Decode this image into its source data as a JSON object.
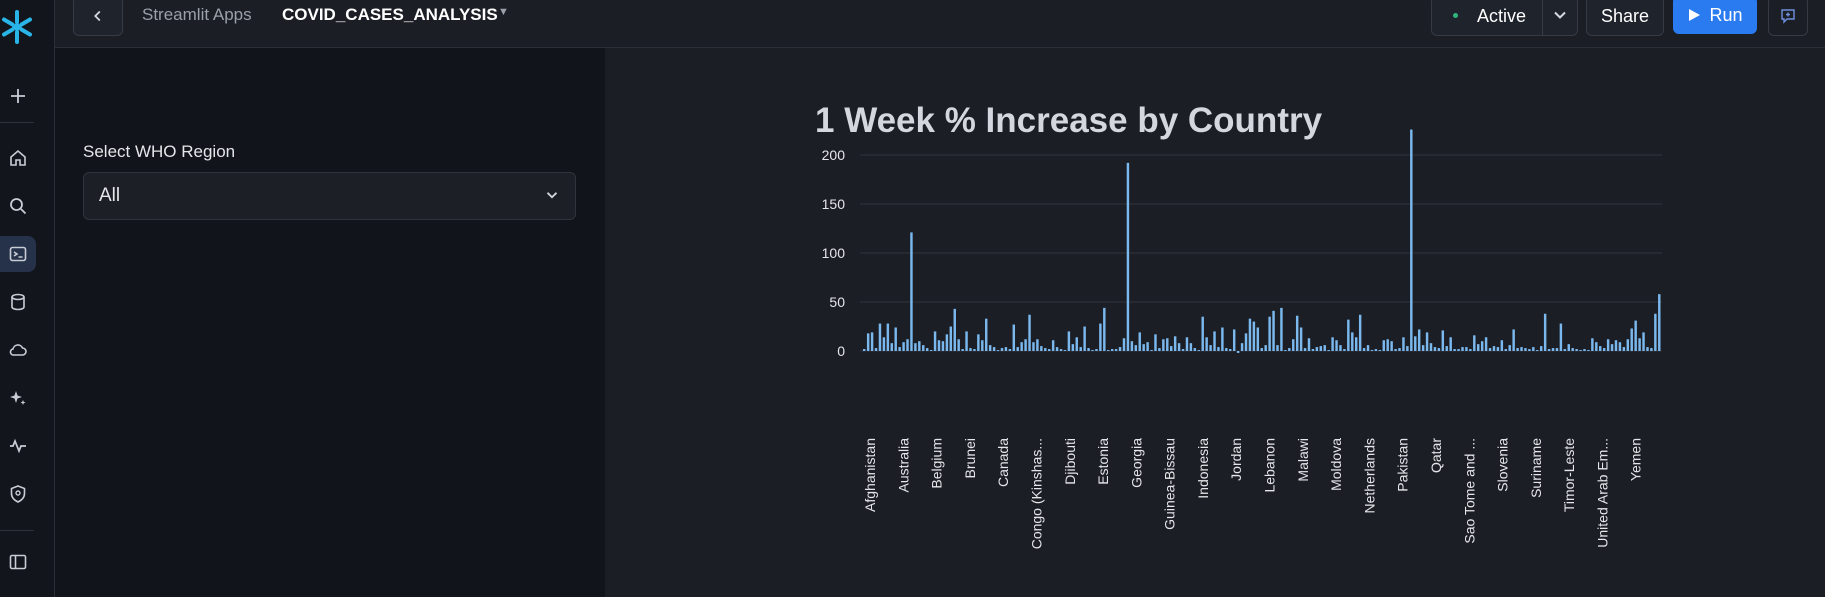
{
  "topbar": {
    "app_label": "Streamlit Apps",
    "title": "COVID_CASES_ANALYSIS",
    "status": "Active",
    "share_label": "Share",
    "run_label": "Run"
  },
  "sidebar": {
    "field_label": "Select WHO Region",
    "selected": "All"
  },
  "colors": {
    "accent": "#2b7bf0",
    "bar": "#7ab8ee",
    "status": "#2fb67c"
  },
  "chart_data": {
    "type": "bar",
    "title": "1 Week % Increase by Country",
    "xlabel": "",
    "ylabel": "",
    "ylim": [
      -5,
      235
    ],
    "yticks": [
      0,
      50,
      100,
      150,
      200
    ],
    "x_tick_labels": [
      "Afghanistan",
      "Australia",
      "Belgium",
      "Brunei",
      "Canada",
      "Congo (Kinshas...",
      "Djibouti",
      "Estonia",
      "Georgia",
      "Guinea-Bissau",
      "Indonesia",
      "Jordan",
      "Lebanon",
      "Malawi",
      "Moldova",
      "Netherlands",
      "Pakistan",
      "Qatar",
      "Sao Tome and ...",
      "Slovenia",
      "Suriname",
      "Timor-Leste",
      "United Arab Em...",
      "Yemen"
    ],
    "values": [
      2,
      18,
      19,
      3,
      28,
      14,
      28,
      8,
      24,
      4,
      9,
      12,
      121,
      8,
      10,
      6,
      3,
      1,
      20,
      11,
      10,
      17,
      25,
      43,
      12,
      2,
      20,
      3,
      2,
      17,
      11,
      33,
      6,
      4,
      1,
      3,
      4,
      2,
      27,
      4,
      9,
      12,
      37,
      9,
      12,
      5,
      3,
      2,
      11,
      4,
      2,
      1,
      20,
      7,
      14,
      4,
      25,
      3,
      1,
      2,
      28,
      44,
      1,
      2,
      2,
      4,
      13,
      192,
      10,
      6,
      19,
      7,
      9,
      1,
      17,
      3,
      12,
      13,
      5,
      15,
      8,
      2,
      14,
      8,
      3,
      1,
      35,
      14,
      6,
      20,
      4,
      24,
      3,
      2,
      22,
      -2,
      8,
      18,
      33,
      30,
      24,
      3,
      6,
      35,
      41,
      6,
      44,
      1,
      3,
      12,
      36,
      24,
      3,
      13,
      2,
      4,
      5,
      6,
      1,
      14,
      11,
      6,
      2,
      32,
      19,
      14,
      37,
      3,
      6,
      1,
      2,
      1,
      11,
      12,
      10,
      2,
      3,
      14,
      5,
      226,
      15,
      22,
      6,
      19,
      8,
      4,
      3,
      21,
      5,
      14,
      2,
      2,
      4,
      4,
      2,
      16,
      7,
      10,
      14,
      3,
      5,
      4,
      11,
      2,
      6,
      22,
      3,
      4,
      3,
      2,
      4,
      1,
      5,
      38,
      2,
      3,
      3,
      28,
      2,
      7,
      3,
      2,
      1,
      2,
      1,
      13,
      9,
      5,
      3,
      12,
      7,
      11,
      9,
      4,
      12,
      23,
      31,
      13,
      19,
      4,
      3,
      38,
      58
    ]
  }
}
